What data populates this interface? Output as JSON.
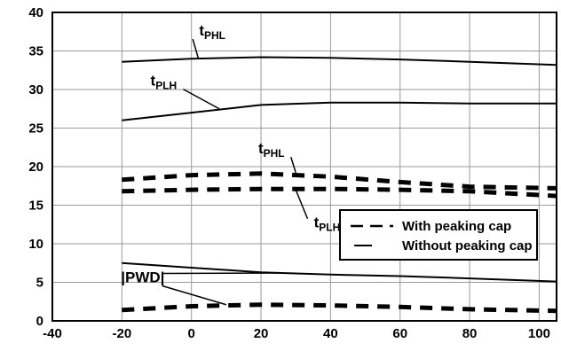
{
  "chart_data": {
    "type": "line",
    "title": "",
    "xlabel": "",
    "ylabel": "",
    "xlim": [
      -40,
      105
    ],
    "ylim": [
      0,
      40
    ],
    "x_ticks": [
      -40,
      -20,
      0,
      20,
      40,
      60,
      80,
      100
    ],
    "y_ticks": [
      0,
      5,
      10,
      15,
      20,
      25,
      30,
      35,
      40
    ],
    "grid": true,
    "legend": {
      "position": "right",
      "entries": [
        {
          "label": "With peaking cap",
          "style": "dashed"
        },
        {
          "label": "Without peaking cap",
          "style": "solid"
        }
      ]
    },
    "series": [
      {
        "group": "without",
        "style": "solid",
        "x": [
          -20,
          0,
          20,
          40,
          60,
          80,
          105
        ],
        "y": [
          33.6,
          34.0,
          34.2,
          34.1,
          33.9,
          33.6,
          33.2
        ]
      },
      {
        "group": "without",
        "style": "solid",
        "x": [
          -20,
          0,
          20,
          40,
          60,
          80,
          105
        ],
        "y": [
          26.0,
          27.0,
          28.0,
          28.3,
          28.3,
          28.2,
          28.2
        ]
      },
      {
        "group": "without",
        "style": "solid",
        "x": [
          -20,
          0,
          20,
          40,
          60,
          80,
          105
        ],
        "y": [
          7.5,
          6.9,
          6.3,
          6.0,
          5.8,
          5.5,
          5.1
        ]
      },
      {
        "group": "with",
        "style": "dashed",
        "x": [
          -20,
          0,
          20,
          40,
          60,
          80,
          105
        ],
        "y": [
          18.3,
          18.9,
          19.1,
          18.7,
          18.0,
          17.4,
          17.2
        ]
      },
      {
        "group": "with",
        "style": "dashed",
        "x": [
          -20,
          0,
          20,
          40,
          60,
          80,
          105
        ],
        "y": [
          16.8,
          17.0,
          17.1,
          17.1,
          17.0,
          16.8,
          16.2
        ]
      },
      {
        "group": "with",
        "style": "dashed",
        "x": [
          -20,
          0,
          20,
          40,
          60,
          80,
          105
        ],
        "y": [
          1.4,
          1.9,
          2.1,
          2.0,
          1.8,
          1.5,
          1.3
        ]
      }
    ],
    "annotations": [
      {
        "text": "t",
        "sub": "PHL",
        "x": 6,
        "y": 37.0,
        "points_to": [
          [
            2,
            34.0
          ]
        ]
      },
      {
        "text": "t",
        "sub": "PLH",
        "x": -8,
        "y": 30.5,
        "points_to": [
          [
            8,
            27.5
          ]
        ]
      },
      {
        "text": "t",
        "sub": "PHL",
        "x": 23,
        "y": 21.7,
        "points_to": [
          [
            30,
            19.2
          ]
        ]
      },
      {
        "text": "t",
        "sub": "PLH",
        "x": 39,
        "y": 12.1,
        "points_to": [
          [
            30,
            17.0
          ]
        ]
      },
      {
        "text": "|PWD|",
        "sub": "",
        "x": -14,
        "y": 5.0,
        "points_to": [
          [
            26,
            6.2
          ],
          [
            10,
            2.1
          ]
        ]
      }
    ]
  }
}
